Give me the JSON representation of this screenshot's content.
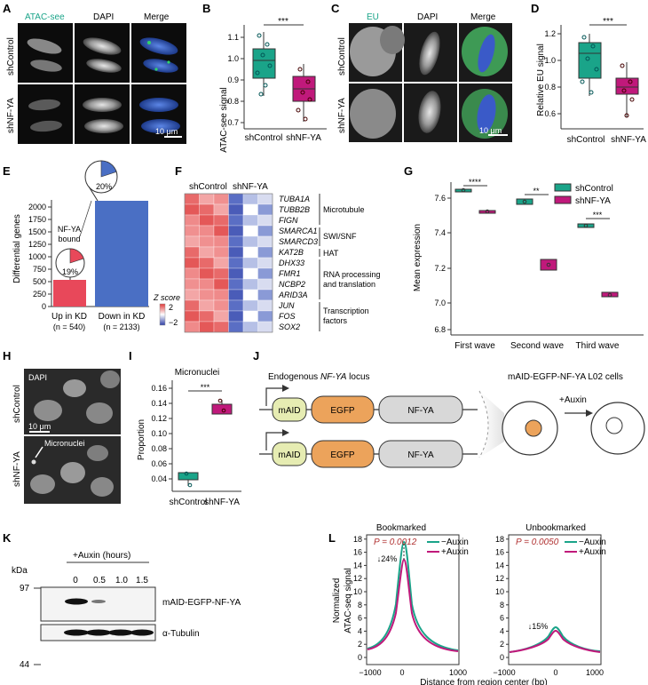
{
  "panel_letters": [
    "A",
    "B",
    "C",
    "D",
    "E",
    "F",
    "G",
    "H",
    "I",
    "J",
    "K",
    "L"
  ],
  "A": {
    "col_labels": [
      "ATAC-see",
      "DAPI",
      "Merge"
    ],
    "row_labels": [
      "shControl",
      "shNF-YA"
    ],
    "scale": "10 μm"
  },
  "B": {
    "ylabel": "ATAC-see signal",
    "ticks": [
      "0.7",
      "0.8",
      "0.9",
      "1.0",
      "1.1"
    ],
    "groups": [
      "shControl",
      "shNF-YA"
    ],
    "sig": "***",
    "colors": [
      "#1aa489",
      "#c0197b"
    ]
  },
  "C": {
    "col_labels": [
      "EU",
      "DAPI",
      "Merge"
    ],
    "row_labels": [
      "shControl",
      "shNF-YA"
    ],
    "scale": "10 μm"
  },
  "D": {
    "ylabel": "Relative EU signal",
    "ticks": [
      "0.6",
      "0.8",
      "1.0",
      "1.2"
    ],
    "groups": [
      "shControl",
      "shNF-YA"
    ],
    "sig": "***"
  },
  "E": {
    "ylabel": "Differential genes",
    "ticks": [
      "0",
      "250",
      "500",
      "750",
      "1000",
      "1250",
      "1500",
      "1750",
      "2000"
    ],
    "bars": [
      {
        "label": "Up in KD",
        "n": "(n = 540)",
        "value": 540,
        "pct": "19%",
        "color": "#e8485a"
      },
      {
        "label": "Down in KD",
        "n": "(n = 2133)",
        "value": 2133,
        "pct": "20%",
        "color": "#4a6fc4"
      }
    ],
    "annotation": [
      "NF-YA",
      "bound"
    ]
  },
  "F": {
    "col_groups": [
      "shControl",
      "shNF-YA"
    ],
    "genes": [
      "TUBA1A",
      "TUBB2B",
      "FIGN",
      "SMARCA1",
      "SMARCD3",
      "KAT2B",
      "DHX33",
      "FMR1",
      "NCBP2",
      "ARID3A",
      "JUN",
      "FOS",
      "SOX2"
    ],
    "categories": [
      {
        "label": [
          "Microtubule"
        ]
      },
      {
        "label": [
          "SWI/SNF"
        ]
      },
      {
        "label": [
          "HAT"
        ]
      },
      {
        "label": [
          "RNA processing",
          "and translation"
        ]
      },
      {
        "label": [
          "Transcription",
          "factors"
        ]
      }
    ],
    "legend_title": "Z score",
    "legend_ticks": [
      "2",
      "−2"
    ]
  },
  "G": {
    "ylabel": "Mean expression",
    "ticks": [
      "6.8",
      "7.0",
      "7.2",
      "7.4",
      "7.6"
    ],
    "groups": [
      "First wave",
      "Second wave",
      "Third wave"
    ],
    "sigs": [
      "****",
      "**",
      "***"
    ],
    "legend": [
      "shControl",
      "shNF-YA"
    ]
  },
  "H": {
    "labels": [
      "DAPI",
      "Micronuclei"
    ],
    "row_labels": [
      "shControl",
      "shNF-YA"
    ],
    "scale": "10 μm"
  },
  "I": {
    "title": "Micronuclei",
    "ylabel": "Proportion",
    "ticks": [
      "0.04",
      "0.06",
      "0.08",
      "0.10",
      "0.12",
      "0.14",
      "0.16"
    ],
    "groups": [
      "shControl",
      "shNF-YA"
    ],
    "sig": "***"
  },
  "J": {
    "locus_prefix": "Endogenous ",
    "locus_gene": "NF-YA",
    "locus_suffix": " locus",
    "cells_label": "mAID-EGFP-NF-YA L02 cells",
    "boxes": [
      "mAID",
      "EGFP",
      "NF-YA"
    ],
    "treatment": "+Auxin"
  },
  "K": {
    "header": "+Auxin (hours)",
    "kda_label": "kDa",
    "markers": [
      "97",
      "44"
    ],
    "timepoints": [
      "0",
      "0.5",
      "1.0",
      "1.5"
    ],
    "bands": [
      "mAID-EGFP-NF-YA",
      "α-Tubulin"
    ]
  },
  "L": {
    "ylabel": [
      "Normalized",
      "ATAC-seq signal"
    ],
    "xlabel": "Distance from region center (bp)",
    "yticks": [
      "0",
      "2",
      "4",
      "6",
      "8",
      "10",
      "12",
      "14",
      "16",
      "18"
    ],
    "xticks": [
      "−1000",
      "0",
      "1000"
    ],
    "panels": [
      {
        "title": "Bookmarked",
        "p": "P = 0.0012",
        "drop": "↓24%"
      },
      {
        "title": "Unbookmarked",
        "p": "P = 0.0050",
        "drop": "↓15%"
      }
    ],
    "legend": [
      "−Auxin",
      "+Auxin"
    ]
  }
}
